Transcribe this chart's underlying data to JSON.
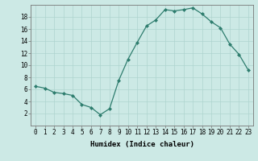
{
  "x": [
    0,
    1,
    2,
    3,
    4,
    5,
    6,
    7,
    8,
    9,
    10,
    11,
    12,
    13,
    14,
    15,
    16,
    17,
    18,
    19,
    20,
    21,
    22,
    23
  ],
  "y": [
    6.5,
    6.2,
    5.5,
    5.3,
    5.0,
    3.5,
    3.0,
    1.8,
    2.8,
    7.5,
    11.0,
    13.8,
    16.5,
    17.5,
    19.2,
    19.0,
    19.2,
    19.5,
    18.5,
    17.2,
    16.2,
    13.5,
    11.8,
    9.2
  ],
  "line_color": "#2e7d6e",
  "marker": "D",
  "marker_size": 2,
  "bg_color": "#cce9e5",
  "grid_color": "#aed4cf",
  "xlabel": "Humidex (Indice chaleur)",
  "ylim": [
    0,
    20
  ],
  "xlim": [
    -0.5,
    23.5
  ],
  "yticks": [
    2,
    4,
    6,
    8,
    10,
    12,
    14,
    16,
    18
  ],
  "xticks": [
    0,
    1,
    2,
    3,
    4,
    5,
    6,
    7,
    8,
    9,
    10,
    11,
    12,
    13,
    14,
    15,
    16,
    17,
    18,
    19,
    20,
    21,
    22,
    23
  ],
  "tick_fontsize": 5.5,
  "label_fontsize": 6.5
}
